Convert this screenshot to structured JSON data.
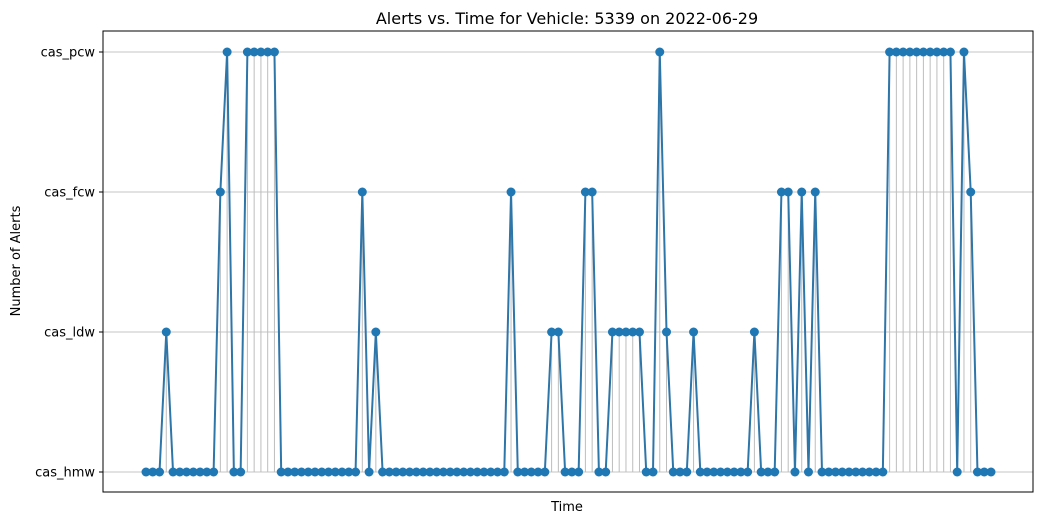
{
  "chart_data": {
    "type": "line",
    "title": "Alerts vs. Time for Vehicle: 5339 on 2022-06-29",
    "xlabel": "Time",
    "ylabel": "Number of Alerts",
    "y_categories": [
      "cas_hmw",
      "cas_ldw",
      "cas_fcw",
      "cas_pcw"
    ],
    "grid": "horizontal",
    "marker": "circle",
    "line_color": "#2e75a8",
    "marker_color": "#1f77b4",
    "stem_color": "#bdbdbd",
    "series": [
      {
        "values": [
          "cas_hmw",
          "cas_hmw",
          "cas_hmw",
          "cas_ldw",
          "cas_hmw",
          "cas_hmw",
          "cas_hmw",
          "cas_hmw",
          "cas_hmw",
          "cas_hmw",
          "cas_hmw",
          "cas_fcw",
          "cas_pcw",
          "cas_hmw",
          "cas_hmw",
          "cas_pcw",
          "cas_pcw",
          "cas_pcw",
          "cas_pcw",
          "cas_pcw",
          "cas_hmw",
          "cas_hmw",
          "cas_hmw",
          "cas_hmw",
          "cas_hmw",
          "cas_hmw",
          "cas_hmw",
          "cas_hmw",
          "cas_hmw",
          "cas_hmw",
          "cas_hmw",
          "cas_hmw",
          "cas_fcw",
          "cas_hmw",
          "cas_ldw",
          "cas_hmw",
          "cas_hmw",
          "cas_hmw",
          "cas_hmw",
          "cas_hmw",
          "cas_hmw",
          "cas_hmw",
          "cas_hmw",
          "cas_hmw",
          "cas_hmw",
          "cas_hmw",
          "cas_hmw",
          "cas_hmw",
          "cas_hmw",
          "cas_hmw",
          "cas_hmw",
          "cas_hmw",
          "cas_hmw",
          "cas_hmw",
          "cas_fcw",
          "cas_hmw",
          "cas_hmw",
          "cas_hmw",
          "cas_hmw",
          "cas_hmw",
          "cas_ldw",
          "cas_ldw",
          "cas_hmw",
          "cas_hmw",
          "cas_hmw",
          "cas_fcw",
          "cas_fcw",
          "cas_hmw",
          "cas_hmw",
          "cas_ldw",
          "cas_ldw",
          "cas_ldw",
          "cas_ldw",
          "cas_ldw",
          "cas_hmw",
          "cas_hmw",
          "cas_pcw",
          "cas_ldw",
          "cas_hmw",
          "cas_hmw",
          "cas_hmw",
          "cas_ldw",
          "cas_hmw",
          "cas_hmw",
          "cas_hmw",
          "cas_hmw",
          "cas_hmw",
          "cas_hmw",
          "cas_hmw",
          "cas_hmw",
          "cas_ldw",
          "cas_hmw",
          "cas_hmw",
          "cas_hmw",
          "cas_fcw",
          "cas_fcw",
          "cas_hmw",
          "cas_fcw",
          "cas_hmw",
          "cas_fcw",
          "cas_hmw",
          "cas_hmw",
          "cas_hmw",
          "cas_hmw",
          "cas_hmw",
          "cas_hmw",
          "cas_hmw",
          "cas_hmw",
          "cas_hmw",
          "cas_hmw",
          "cas_pcw",
          "cas_pcw",
          "cas_pcw",
          "cas_pcw",
          "cas_pcw",
          "cas_pcw",
          "cas_pcw",
          "cas_pcw",
          "cas_pcw",
          "cas_pcw",
          "cas_hmw",
          "cas_pcw",
          "cas_fcw",
          "cas_hmw",
          "cas_hmw",
          "cas_hmw"
        ]
      }
    ]
  }
}
